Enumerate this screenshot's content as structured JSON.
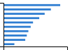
{
  "chart_data": {
    "type": "bar",
    "orientation": "horizontal",
    "categories": [
      null,
      null,
      null,
      null,
      null,
      null,
      null,
      null,
      null,
      null
    ],
    "values": [
      73,
      61,
      53,
      46,
      38,
      35,
      32,
      30,
      28,
      14
    ],
    "color": "#2e7dd1",
    "xlim": [
      0,
      82
    ],
    "tick_labels": false
  }
}
